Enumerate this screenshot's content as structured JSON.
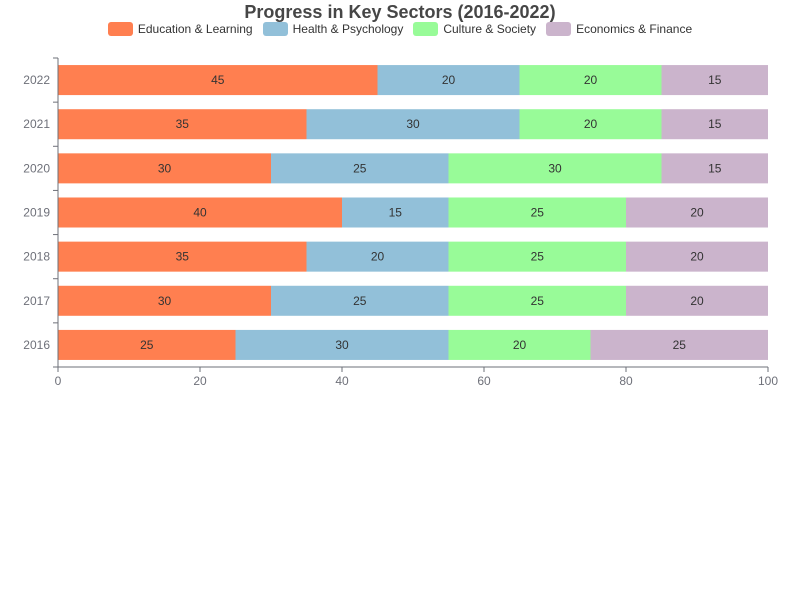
{
  "chart_data": {
    "type": "bar",
    "orientation": "horizontal",
    "stacked": true,
    "title": "Progress in Key Sectors (2016-2022)",
    "categories": [
      "2016",
      "2017",
      "2018",
      "2019",
      "2020",
      "2021",
      "2022"
    ],
    "series": [
      {
        "name": "Education & Learning",
        "color": "#ff7f50",
        "values": [
          25,
          30,
          35,
          40,
          30,
          35,
          45
        ]
      },
      {
        "name": "Health & Psychology",
        "color": "#92c0d9",
        "values": [
          30,
          25,
          20,
          15,
          25,
          30,
          20
        ]
      },
      {
        "name": "Culture & Society",
        "color": "#98fb98",
        "values": [
          20,
          25,
          25,
          25,
          30,
          20,
          20
        ]
      },
      {
        "name": "Economics & Finance",
        "color": "#cbb4cc",
        "values": [
          25,
          20,
          20,
          20,
          15,
          15,
          15
        ]
      }
    ],
    "xlim": [
      0,
      100
    ],
    "xticks": [
      0,
      20,
      40,
      60,
      80,
      100
    ],
    "legend_position": "top-center",
    "grid": false,
    "data_labels": true
  }
}
